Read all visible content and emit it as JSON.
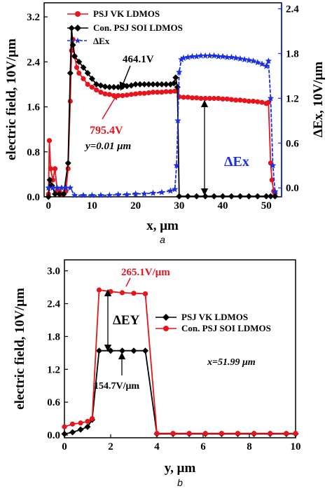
{
  "colors": {
    "red": "#e8131b",
    "blue": "#1a2ee6",
    "black": "#000000"
  },
  "chart_data": [
    {
      "type": "line",
      "caption": "a",
      "xlabel": "x, μm",
      "ylabel": "electric field, 10V/μm",
      "ylabel_right": "ΔEx, 10V/μm",
      "xlim": [
        -1,
        53.5
      ],
      "ylim": [
        0,
        3.45
      ],
      "ylim_right": [
        -0.12,
        2.48
      ],
      "xticks": [
        "0",
        "10",
        "20",
        "30",
        "40",
        "50"
      ],
      "yticks": [
        "0.0",
        "0.8",
        "1.6",
        "2.4",
        "3.2"
      ],
      "yticks_right": [
        "0.0",
        "0.6",
        "1.2",
        "1.8",
        "2.4"
      ],
      "legend": "top-left",
      "series": [
        {
          "name": "PSJ VK LDMOS",
          "color": "#e8131b",
          "marker": "circle",
          "axis": "left",
          "x": [
            0,
            0.2,
            0.5,
            1,
            1.5,
            2,
            2.5,
            3,
            3.5,
            4,
            4.5,
            5,
            5.3,
            5.6,
            6,
            6.5,
            7,
            8,
            9,
            10,
            11,
            12,
            13,
            14,
            15,
            16,
            17,
            18,
            19,
            20,
            21,
            22,
            23,
            24,
            25,
            26,
            27,
            28,
            29,
            29.5,
            30,
            31,
            32,
            33,
            34,
            35,
            36,
            37,
            38,
            39,
            40,
            41,
            42,
            43,
            44,
            45,
            46,
            47,
            48,
            49,
            50,
            50.5,
            51,
            51.3,
            51.7,
            52
          ],
          "y": [
            0.05,
            1.0,
            0.5,
            0.3,
            0.5,
            0.1,
            0.1,
            0.05,
            0.05,
            0.1,
            0.5,
            1.7,
            2.6,
            2.8,
            2.5,
            2.3,
            2.2,
            2.1,
            2.0,
            1.95,
            1.9,
            1.86,
            1.83,
            1.82,
            1.8,
            1.8,
            1.8,
            1.81,
            1.82,
            1.83,
            1.84,
            1.84,
            1.85,
            1.86,
            1.86,
            1.86,
            1.87,
            1.87,
            1.88,
            1.88,
            1.78,
            1.77,
            1.77,
            1.76,
            1.76,
            1.75,
            1.75,
            1.75,
            1.75,
            1.75,
            1.74,
            1.74,
            1.73,
            1.72,
            1.72,
            1.71,
            1.7,
            1.7,
            1.69,
            1.68,
            1.66,
            1.68,
            0.6,
            0.3,
            0.1,
            0.06
          ]
        },
        {
          "name": "Con. PSJ SOI LDMOS",
          "color": "#000000",
          "marker": "diamond",
          "axis": "left",
          "x": [
            0,
            0.3,
            0.8,
            1.5,
            2.5,
            3.5,
            4.5,
            5,
            5.3,
            5.6,
            6,
            7,
            8,
            9,
            10,
            11,
            12,
            13,
            14,
            15,
            16,
            17,
            18,
            19,
            20,
            21,
            22,
            23,
            24,
            25,
            26,
            27,
            28,
            28.8,
            29.2,
            29.6,
            30,
            32,
            34,
            36,
            38,
            40,
            42,
            44,
            46,
            48,
            50,
            51,
            52
          ],
          "y": [
            0,
            0.3,
            0.2,
            0.05,
            0.05,
            0.05,
            0.6,
            2.2,
            3.0,
            2.7,
            2.5,
            2.4,
            2.3,
            2.2,
            2.1,
            2.0,
            1.98,
            1.96,
            1.95,
            1.95,
            1.95,
            1.96,
            1.97,
            1.98,
            2.0,
            2.0,
            2.0,
            2.0,
            2.0,
            2.0,
            2.0,
            2.0,
            2.0,
            2.02,
            2.12,
            1.95,
            0.01,
            0.01,
            0.01,
            0.01,
            0.01,
            0.01,
            0.01,
            0.01,
            0.01,
            0.01,
            0.01,
            0.01,
            0.01
          ]
        },
        {
          "name": "ΔEx",
          "color": "#1a2ee6",
          "marker": "star",
          "axis": "right",
          "x": [
            0,
            1,
            2,
            3,
            4,
            5,
            6,
            8,
            10,
            12,
            14,
            16,
            18,
            20,
            22,
            24,
            26,
            28,
            29,
            29.4,
            29.7,
            30,
            30.5,
            31,
            32,
            33,
            34,
            35,
            36,
            37,
            38,
            39,
            40,
            41,
            42,
            43,
            44,
            45,
            46,
            47,
            48,
            49,
            50,
            50.5,
            51,
            51.5,
            52
          ],
          "y": [
            0,
            0,
            0,
            0,
            0,
            0,
            -0.1,
            -0.1,
            -0.1,
            -0.1,
            -0.1,
            -0.09,
            -0.09,
            -0.08,
            -0.08,
            -0.07,
            -0.06,
            -0.04,
            -0.02,
            0.3,
            0.9,
            1.55,
            1.72,
            1.74,
            1.75,
            1.76,
            1.76,
            1.77,
            1.77,
            1.77,
            1.77,
            1.76,
            1.76,
            1.75,
            1.75,
            1.74,
            1.73,
            1.72,
            1.71,
            1.7,
            1.68,
            1.66,
            1.63,
            1.7,
            1.2,
            0.3,
            -0.05
          ]
        }
      ],
      "annotations": {
        "v1": "464.1V",
        "v2": "795.4V",
        "y_cond": "y=0.01 μm",
        "delta": "ΔEx"
      }
    },
    {
      "type": "line",
      "caption": "b",
      "xlabel": "y, μm",
      "ylabel": "electric field, 10V/μm",
      "xlim": [
        0,
        10
      ],
      "ylim": [
        -0.05,
        3.2
      ],
      "xticks": [
        "0",
        "2",
        "4",
        "6",
        "8",
        "10"
      ],
      "yticks": [
        "0.0",
        "0.6",
        "1.2",
        "1.8",
        "2.4",
        "3.0"
      ],
      "legend": "center-right",
      "series": [
        {
          "name": "PSJ VK LDMOS",
          "color": "#000000",
          "marker": "diamond",
          "x": [
            0,
            0.35,
            0.7,
            1.0,
            1.2,
            1.5,
            2.0,
            2.5,
            3.0,
            3.5,
            4.0,
            4.7,
            5.4,
            6.1,
            6.8,
            7.5,
            8.2,
            8.9,
            9.6,
            10
          ],
          "y": [
            0.02,
            0.05,
            0.1,
            0.15,
            0.28,
            1.54,
            1.54,
            1.54,
            1.54,
            1.54,
            0.02,
            0.02,
            0.02,
            0.02,
            0.02,
            0.02,
            0.02,
            0.02,
            0.02,
            0.02
          ]
        },
        {
          "name": "Con. PSJ SOI LDMOS",
          "color": "#e8131b",
          "marker": "circle",
          "x": [
            0,
            0.35,
            0.7,
            1.0,
            1.2,
            1.5,
            2.0,
            2.5,
            3.0,
            3.5,
            4.0,
            4.7,
            5.4,
            6.1,
            6.8,
            7.5,
            8.2,
            8.9,
            9.6,
            10
          ],
          "y": [
            0.15,
            0.2,
            0.22,
            0.25,
            0.3,
            2.65,
            2.62,
            2.6,
            2.59,
            2.58,
            0.03,
            0.03,
            0.03,
            0.03,
            0.03,
            0.03,
            0.03,
            0.03,
            0.03,
            0.03
          ]
        }
      ],
      "annotations": {
        "top": "265.1V/μm",
        "bottom": "154.7V/μm",
        "x_cond": "x=51.99 μm",
        "delta": "ΔEY"
      }
    }
  ]
}
